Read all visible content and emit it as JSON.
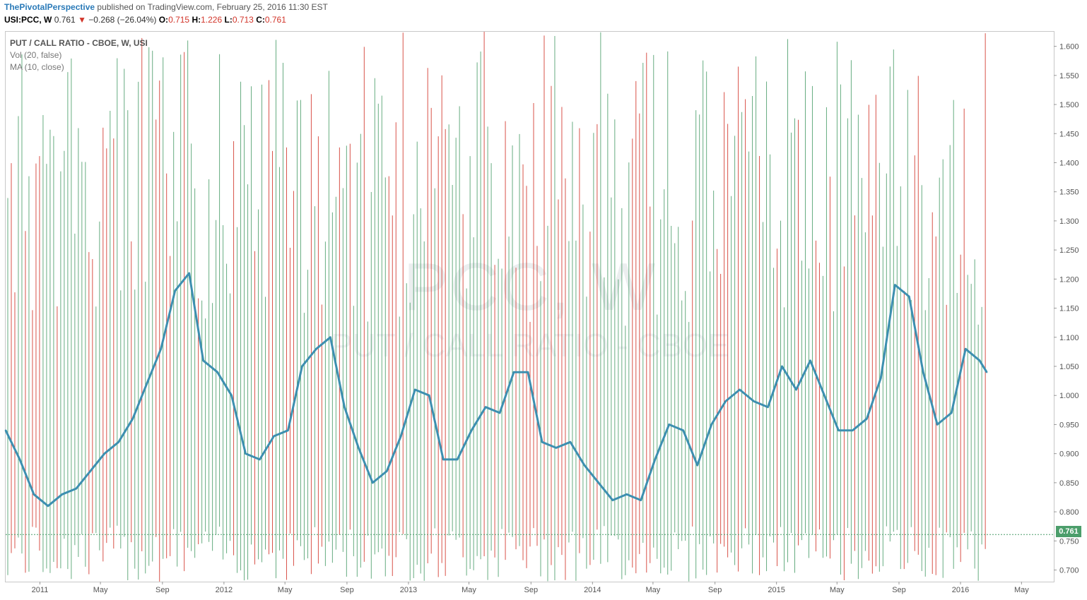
{
  "header": {
    "author": "ThePivotalPerspective",
    "published": "published on TradingView.com, February 25, 2016 11:30 EST"
  },
  "quote": {
    "symbol": "USI:PCC, W",
    "last": "0.761",
    "change": "−0.268 (−26.04%)",
    "o_label": "O:",
    "o": "0.715",
    "h_label": "H:",
    "h": "1.226",
    "l_label": "L:",
    "l": "0.713",
    "c_label": "C:",
    "c": "0.761",
    "down_icon": "triangle-down-icon"
  },
  "legend": {
    "title": "PUT / CALL RATIO - CBOE, W, USI",
    "vol": "Vol (20, false)",
    "ma": "MA (10, close)"
  },
  "watermark": {
    "symbol": "PCC, W",
    "name": "PUT / CALL RATIO - CBOE"
  },
  "price_badge": "0.761",
  "colors": {
    "up": "#4c9e6b",
    "down": "#d2352a",
    "ma": "#3d8fb0"
  },
  "chart_data": {
    "type": "line",
    "title": "PUT / CALL RATIO - CBOE, W, USI",
    "y_ticks": [
      "0.700",
      "0.750",
      "0.800",
      "0.850",
      "0.900",
      "0.950",
      "1.000",
      "1.050",
      "1.100",
      "1.150",
      "1.200",
      "1.250",
      "1.300",
      "1.350",
      "1.400",
      "1.450",
      "1.500",
      "1.550",
      "1.600"
    ],
    "ylim": [
      0.68,
      1.625
    ],
    "x_labels": [
      "2011",
      "May",
      "Sep",
      "2012",
      "May",
      "Sep",
      "2013",
      "May",
      "Sep",
      "2014",
      "May",
      "Sep",
      "2015",
      "May",
      "Sep",
      "2016",
      "May"
    ],
    "x_label_dates": [
      "2011-01",
      "2011-05",
      "2011-09",
      "2012-01",
      "2012-05",
      "2012-09",
      "2013-01",
      "2013-05",
      "2013-09",
      "2014-01",
      "2014-05",
      "2014-09",
      "2015-01",
      "2015-05",
      "2015-09",
      "2016-01",
      "2016-05"
    ],
    "x_range": [
      "2010-10-25",
      "2016-07-04"
    ],
    "last_price": 0.761,
    "series": [
      {
        "name": "MA (10, close)",
        "dates": [
          "2010-10-25",
          "2010-11-22",
          "2010-12-20",
          "2011-01-17",
          "2011-02-14",
          "2011-03-14",
          "2011-04-11",
          "2011-05-09",
          "2011-06-06",
          "2011-07-04",
          "2011-08-01",
          "2011-08-29",
          "2011-09-26",
          "2011-10-24",
          "2011-11-21",
          "2011-12-19",
          "2012-01-16",
          "2012-02-13",
          "2012-03-12",
          "2012-04-09",
          "2012-05-07",
          "2012-06-04",
          "2012-07-02",
          "2012-07-30",
          "2012-08-27",
          "2012-09-24",
          "2012-10-22",
          "2012-11-19",
          "2012-12-17",
          "2013-01-14",
          "2013-02-11",
          "2013-03-11",
          "2013-04-08",
          "2013-05-06",
          "2013-06-03",
          "2013-07-01",
          "2013-07-29",
          "2013-08-26",
          "2013-09-23",
          "2013-10-21",
          "2013-11-18",
          "2013-12-16",
          "2014-01-13",
          "2014-02-10",
          "2014-03-10",
          "2014-04-07",
          "2014-05-05",
          "2014-06-02",
          "2014-06-30",
          "2014-07-28",
          "2014-08-25",
          "2014-09-22",
          "2014-10-20",
          "2014-11-17",
          "2014-12-15",
          "2015-01-12",
          "2015-02-09",
          "2015-03-09",
          "2015-04-06",
          "2015-05-04",
          "2015-06-01",
          "2015-06-29",
          "2015-07-27",
          "2015-08-24",
          "2015-09-21",
          "2015-10-19",
          "2015-11-16",
          "2015-12-14",
          "2016-01-11",
          "2016-02-08",
          "2016-02-22"
        ],
        "values": [
          0.94,
          0.89,
          0.83,
          0.81,
          0.83,
          0.84,
          0.87,
          0.9,
          0.92,
          0.96,
          1.02,
          1.08,
          1.18,
          1.21,
          1.06,
          1.04,
          1.0,
          0.9,
          0.89,
          0.93,
          0.94,
          1.05,
          1.08,
          1.1,
          0.98,
          0.91,
          0.85,
          0.87,
          0.93,
          1.01,
          1.0,
          0.89,
          0.89,
          0.94,
          0.98,
          0.97,
          1.04,
          1.04,
          0.92,
          0.91,
          0.92,
          0.88,
          0.85,
          0.82,
          0.83,
          0.82,
          0.89,
          0.95,
          0.94,
          0.88,
          0.95,
          0.99,
          1.01,
          0.99,
          0.98,
          1.05,
          1.01,
          1.06,
          1.0,
          0.94,
          0.94,
          0.96,
          1.03,
          1.19,
          1.17,
          1.04,
          0.95,
          0.97,
          1.08,
          1.06,
          1.04
        ]
      }
    ]
  }
}
